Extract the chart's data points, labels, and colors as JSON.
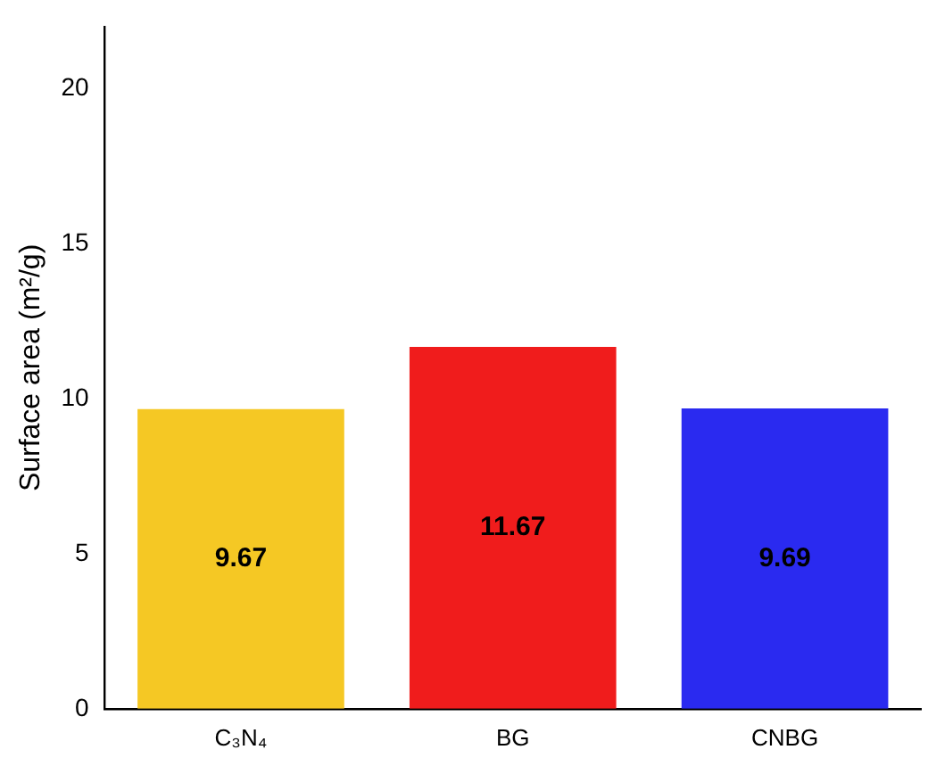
{
  "chart_data": {
    "type": "bar",
    "ylabel": "Surface area (m²/g)",
    "categories": [
      "C₃N₄",
      "BG",
      "CNBG"
    ],
    "values": [
      9.67,
      11.67,
      9.69
    ],
    "colors": [
      "#f5c824",
      "#f01c1c",
      "#2a2af0"
    ],
    "ylim": [
      0,
      22
    ],
    "yticks": [
      0,
      5,
      10,
      15,
      20
    ],
    "grid": false,
    "legend": false,
    "data_labels": true
  }
}
